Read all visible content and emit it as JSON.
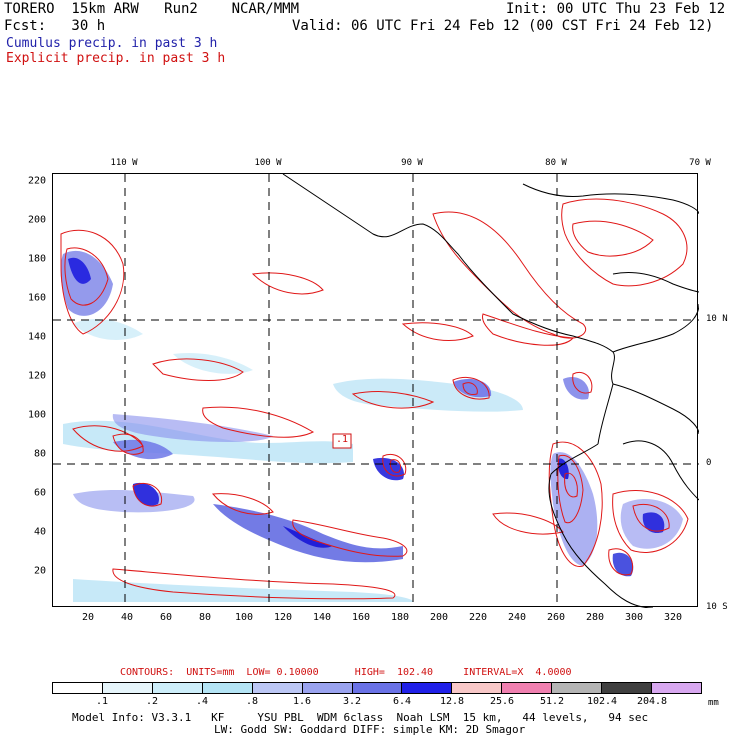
{
  "header": {
    "model_line": "TORERO  15km ARW   Run2    NCAR/MMM",
    "init": "Init: 00 UTC Thu 23 Feb 12",
    "fcst": "Fcst:   30 h",
    "valid": "Valid: 06 UTC Fri 24 Feb 12 (00 CST Fri 24 Feb 12)",
    "legend_cumulus": "Cumulus precip. in past 3 h",
    "legend_explicit": "Explicit precip. in past 3 h"
  },
  "axes": {
    "x_ticks": [
      "20",
      "40",
      "60",
      "80",
      "100",
      "120",
      "140",
      "160",
      "180",
      "200",
      "220",
      "240",
      "260",
      "280",
      "300",
      "320"
    ],
    "y_ticks": [
      "20",
      "40",
      "60",
      "80",
      "100",
      "120",
      "140",
      "160",
      "180",
      "200",
      "220"
    ],
    "lon_labels": [
      "110 W",
      "100 W",
      "90 W",
      "80 W",
      "70 W"
    ],
    "lat_labels": [
      "10 N",
      "0",
      "10 S"
    ]
  },
  "map": {
    "marker_label": ".1"
  },
  "footer": {
    "contour_info": "CONTOURS:  UNITS=mm  LOW= 0.10000      HIGH=  102.40     INTERVAL=X  4.0000",
    "colorbar_labels": [
      ".1",
      ".2",
      ".4",
      ".8",
      "1.6",
      "3.2",
      "6.4",
      "12.8",
      "25.6",
      "51.2",
      "102.4",
      "204.8"
    ],
    "colorbar_unit": "mm",
    "colorbar_colors": [
      "#ffffff",
      "#e6f5fb",
      "#cdeefa",
      "#b4e4f5",
      "#bcc7f5",
      "#9aa3ef",
      "#6a72e6",
      "#2020e8",
      "#f8c8c8",
      "#f080b0",
      "#b4b4b4",
      "#404040",
      "#d8a8f0"
    ],
    "model_info_1": "Model Info: V3.3.1   KF     YSU PBL  WDM 6class  Noah LSM  15 km,   44 levels,   94 sec",
    "model_info_2": "LW: Godd SW: Goddard DIFF: simple KM: 2D Smagor"
  }
}
